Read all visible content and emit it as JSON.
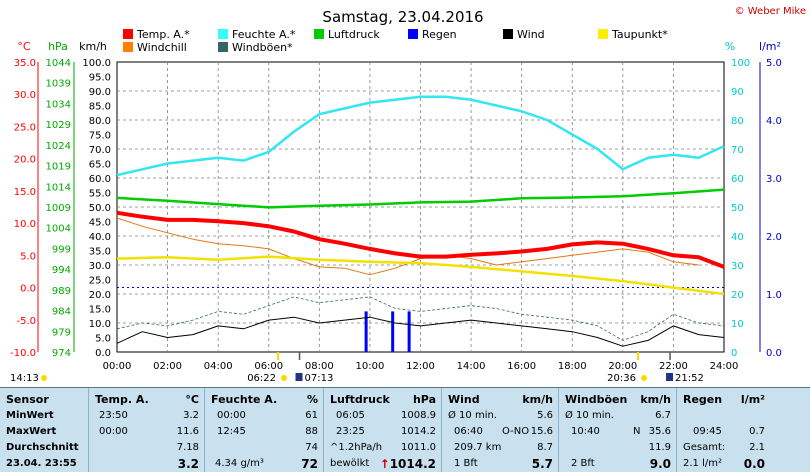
{
  "header": {
    "title": "Samstag, 23.04.2016",
    "copyright": "© Weber Mike"
  },
  "legend": [
    {
      "label": "Temp. A.*",
      "color": "#ff0000"
    },
    {
      "label": "Feuchte A.*",
      "color": "#33ffff"
    },
    {
      "label": "Luftdruck",
      "color": "#00cc00"
    },
    {
      "label": "Regen",
      "color": "#0000ff"
    },
    {
      "label": "Wind",
      "color": "#000000"
    },
    {
      "label": "Taupunkt*",
      "color": "#ffee00"
    },
    {
      "label": "Windchill",
      "color": "#ff7f00"
    },
    {
      "label": "Windböen*",
      "color": "#336666"
    }
  ],
  "axis_units": {
    "temp": "°C",
    "pressure": "hPa",
    "wind": "km/h",
    "humidity": "%",
    "rain": "l/m²"
  },
  "axis_ticks": {
    "temp": [
      "35.0",
      "30.0",
      "25.0",
      "20.0",
      "15.0",
      "10.0",
      "5.0",
      "0.0",
      "-5.0",
      "-10.0"
    ],
    "pressure": [
      "1044",
      "1039",
      "1034",
      "1029",
      "1024",
      "1019",
      "1014",
      "1009",
      "1004",
      "999",
      "994",
      "989",
      "984",
      "979",
      "974"
    ],
    "wind": [
      "100.0",
      "95.0",
      "90.0",
      "85.0",
      "80.0",
      "75.0",
      "70.0",
      "65.0",
      "60.0",
      "55.0",
      "50.0",
      "45.0",
      "40.0",
      "35.0",
      "30.0",
      "25.0",
      "20.0",
      "15.0",
      "10.0",
      "5.0",
      "0.0"
    ],
    "humidity": [
      "100",
      "90",
      "80",
      "70",
      "60",
      "50",
      "40",
      "30",
      "20",
      "10",
      "0"
    ],
    "rain": [
      "5.0",
      "4.0",
      "3.0",
      "2.0",
      "1.0",
      "0.0"
    ],
    "time": [
      "00:00",
      "02:00",
      "04:00",
      "06:00",
      "08:00",
      "10:00",
      "12:00",
      "14:00",
      "16:00",
      "18:00",
      "20:00",
      "22:00",
      "24:00"
    ]
  },
  "sun": {
    "sunrise": "06:22",
    "sunset": "20:36",
    "moonrise": "07:13",
    "moonset": "21:52",
    "left_time": "14:13"
  },
  "colors": {
    "table_bg": "#c9e1ee",
    "axis_temp": "#ff0000",
    "axis_pressure": "#00aa00",
    "axis_humidity": "#00cccc",
    "axis_rain": "#0000cc"
  },
  "chart_data": {
    "type": "line",
    "title": "Samstag, 23.04.2016",
    "x_unit": "hour",
    "xlim": [
      0,
      24
    ],
    "series": [
      {
        "name": "Temp. A.*",
        "unit": "°C",
        "axis": "temp",
        "ylim": [
          -10,
          35
        ],
        "x": [
          0,
          1,
          2,
          3,
          4,
          5,
          6,
          7,
          8,
          9,
          10,
          11,
          12,
          13,
          14,
          15,
          16,
          17,
          18,
          19,
          20,
          21,
          22,
          23,
          24
        ],
        "values": [
          11.6,
          11.0,
          10.5,
          10.5,
          10.3,
          10.0,
          9.5,
          8.7,
          7.5,
          6.8,
          6.0,
          5.3,
          4.8,
          4.8,
          5.1,
          5.3,
          5.6,
          6.0,
          6.7,
          7.0,
          6.8,
          6.0,
          5.0,
          4.7,
          3.2
        ]
      },
      {
        "name": "Feuchte A.*",
        "unit": "%",
        "axis": "humidity",
        "ylim": [
          0,
          100
        ],
        "x": [
          0,
          1,
          2,
          3,
          4,
          5,
          6,
          7,
          8,
          9,
          10,
          11,
          12,
          13,
          14,
          15,
          16,
          17,
          18,
          19,
          20,
          21,
          22,
          23,
          24
        ],
        "values": [
          61,
          63,
          65,
          66,
          67,
          66,
          69,
          76,
          82,
          84,
          86,
          87,
          88,
          88,
          87,
          85,
          83,
          80,
          75,
          70,
          63,
          67,
          68,
          67,
          71
        ]
      },
      {
        "name": "Luftdruck",
        "unit": "hPa",
        "axis": "pressure",
        "ylim": [
          974,
          1044
        ],
        "x": [
          0,
          2,
          4,
          6,
          8,
          10,
          12,
          14,
          16,
          18,
          20,
          22,
          24
        ],
        "values": [
          1011.2,
          1010.5,
          1009.7,
          1008.9,
          1009.3,
          1009.6,
          1010.1,
          1010.3,
          1011.1,
          1011.3,
          1011.6,
          1012.3,
          1013.2
        ]
      },
      {
        "name": "Taupunkt*",
        "unit": "°C",
        "axis": "temp",
        "ylim": [
          -10,
          35
        ],
        "x": [
          0,
          2,
          4,
          6,
          8,
          10,
          12,
          14,
          16,
          18,
          20,
          22,
          24
        ],
        "values": [
          4.5,
          4.7,
          4.3,
          4.8,
          4.3,
          4.0,
          3.8,
          3.2,
          2.5,
          1.8,
          1.0,
          0.0,
          -1.0
        ]
      },
      {
        "name": "Windchill",
        "unit": "°C",
        "axis": "temp",
        "ylim": [
          -10,
          35
        ],
        "x": [
          0,
          1,
          2,
          3,
          4,
          5,
          6,
          7,
          8,
          9,
          10,
          11,
          12,
          13,
          14,
          15,
          16,
          17,
          18,
          19,
          20,
          21,
          22,
          23
        ],
        "values": [
          10.8,
          9.5,
          8.5,
          7.5,
          6.8,
          6.5,
          6.0,
          4.5,
          3.2,
          3.0,
          2.0,
          3.0,
          4.5,
          5.0,
          4.5,
          3.5,
          4.0,
          4.5,
          5.0,
          5.5,
          6.0,
          5.5,
          4.0,
          3.5
        ]
      },
      {
        "name": "Wind",
        "unit": "km/h",
        "axis": "wind",
        "ylim": [
          0,
          100
        ],
        "x": [
          0,
          1,
          2,
          3,
          4,
          5,
          6,
          7,
          8,
          9,
          10,
          11,
          12,
          13,
          14,
          15,
          16,
          17,
          18,
          19,
          20,
          21,
          22,
          23,
          24
        ],
        "values": [
          3,
          7,
          5,
          6,
          9,
          8,
          11,
          12,
          10,
          11,
          12,
          10,
          9,
          10,
          11,
          10,
          9,
          8,
          7,
          5,
          2,
          4,
          9,
          6,
          5
        ]
      },
      {
        "name": "Windböen*",
        "unit": "km/h",
        "axis": "wind",
        "ylim": [
          0,
          100
        ],
        "x": [
          0,
          1,
          2,
          3,
          4,
          5,
          6,
          7,
          8,
          9,
          10,
          11,
          12,
          13,
          14,
          15,
          16,
          17,
          18,
          19,
          20,
          21,
          22,
          23,
          24
        ],
        "values": [
          8,
          10,
          9,
          11,
          14,
          13,
          16,
          19,
          17,
          18,
          19,
          15,
          14,
          15,
          16,
          15,
          13,
          12,
          11,
          9,
          4,
          7,
          13,
          10,
          9
        ]
      },
      {
        "name": "Regen",
        "unit": "l/m²",
        "axis": "rain",
        "ylim": [
          0,
          5
        ],
        "type": "bar",
        "x": [
          9.85,
          10.9,
          11.55
        ],
        "values": [
          0.7,
          0.7,
          0.7
        ]
      }
    ]
  },
  "table": {
    "sensor": {
      "header": "Sensor",
      "min": "MinWert",
      "max": "MaxWert",
      "avg": "Durchschnitt",
      "now": "23.04. 23:55"
    },
    "temp": {
      "header": "Temp. A.",
      "unit": "°C",
      "min_time": "23:50",
      "min_val": "3.2",
      "max_time": "00:00",
      "max_val": "11.6",
      "avg_val": "7.18",
      "now_val": "3.2"
    },
    "humidity": {
      "header": "Feuchte A.",
      "unit": "%",
      "min_time": "00:00",
      "min_val": "61",
      "max_time": "12:45",
      "max_val": "88",
      "avg_val": "74",
      "now_extra": "4.34 g/m³",
      "now_val": "72"
    },
    "pressure": {
      "header": "Luftdruck",
      "unit": "hPa",
      "min_time": "06:05",
      "min_val": "1008.9",
      "max_time": "23:25",
      "max_val": "1014.2",
      "avg_label": "^1.2hPa/h",
      "avg_val": "1011.0",
      "now_label": "bewölkt",
      "now_arrow": "↑",
      "now_val": "1014.2"
    },
    "wind": {
      "header": "Wind",
      "unit": "km/h",
      "min_label": "Ø 10 min.",
      "min_val": "5.6",
      "max_time": "06:40",
      "max_dir": "O-NO",
      "max_val": "15.6",
      "avg_label": "209.7 km",
      "avg_val": "8.7",
      "now_label": "1 Bft",
      "now_val": "5.7"
    },
    "gust": {
      "header": "Windböen",
      "unit": "km/h",
      "min_label": "Ø 10 min.",
      "min_val": "6.7",
      "max_time": "10:40",
      "max_dir": "N",
      "max_val": "35.6",
      "avg_val": "11.9",
      "now_label": "2 Bft",
      "now_val": "9.0"
    },
    "rain": {
      "header": "Regen",
      "unit": "l/m²",
      "max_time": "09:45",
      "max_val": "0.7",
      "avg_label": "Gesamt:",
      "avg_val": "2.1",
      "now_label": "2.1 l/m²",
      "now_val": "0.0"
    }
  }
}
